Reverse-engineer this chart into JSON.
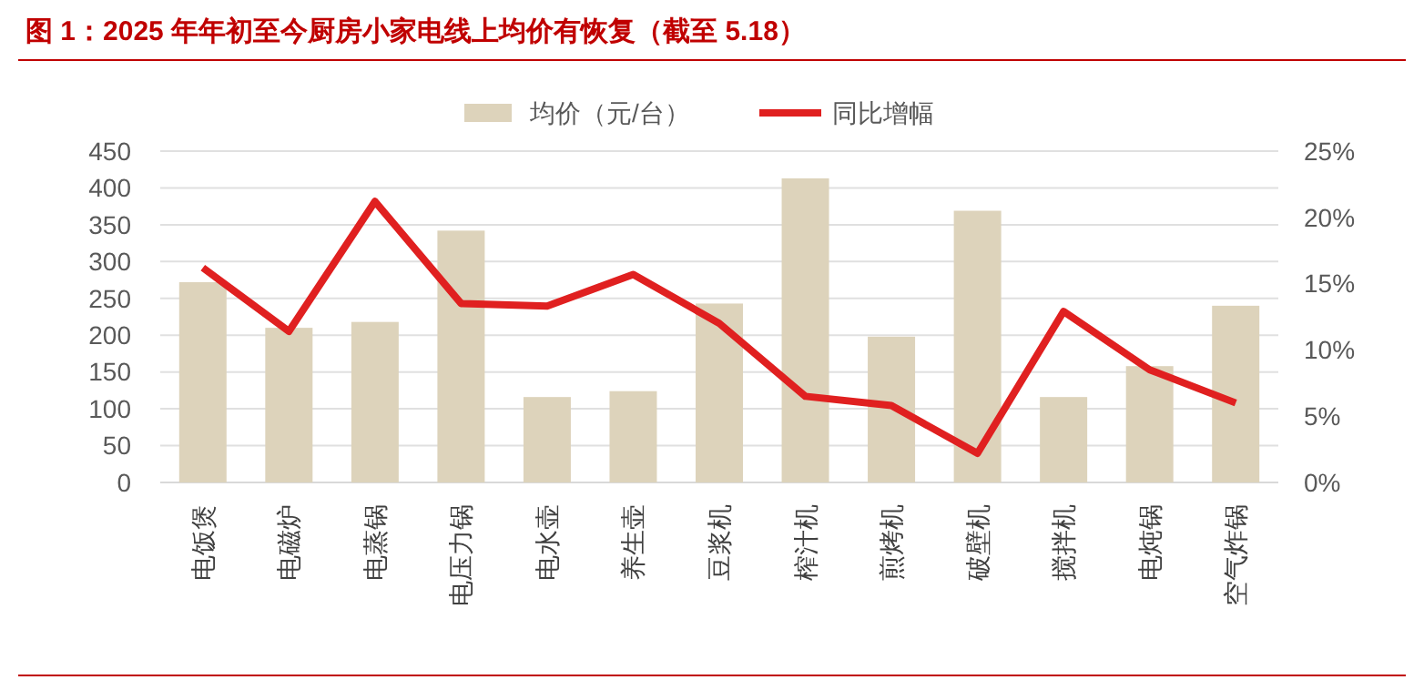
{
  "chart_data": {
    "type": "bar",
    "title": "图 1：2025 年年初至今厨房小家电线上均价有恢复（截至 5.18）",
    "categories": [
      "电饭煲",
      "电磁炉",
      "电蒸锅",
      "电压力锅",
      "电水壶",
      "养生壶",
      "豆浆机",
      "榨汁机",
      "煎烤机",
      "破壁机",
      "搅拌机",
      "电炖锅",
      "空气炸锅"
    ],
    "series": [
      {
        "name": "均价（元/台）",
        "color": "#ddd3bb",
        "values": [
          272,
          210,
          218,
          342,
          116,
          124,
          243,
          413,
          198,
          369,
          116,
          158,
          240
        ]
      },
      {
        "name": "同比增幅",
        "type": "line",
        "axis": "y2",
        "color": "#e02020",
        "values": [
          16.2,
          11.4,
          21.2,
          13.5,
          13.3,
          15.7,
          12.0,
          6.5,
          5.8,
          2.2,
          12.9,
          8.5,
          6.0
        ]
      }
    ],
    "ylim": [
      0,
      450
    ],
    "yticks": [
      0,
      50,
      100,
      150,
      200,
      250,
      300,
      350,
      400,
      450
    ],
    "y2lim": [
      0,
      25
    ],
    "y2ticks": [
      {
        "value": 0,
        "label": "0%"
      },
      {
        "value": 5,
        "label": "5%"
      },
      {
        "value": 10,
        "label": "10%"
      },
      {
        "value": 15,
        "label": "15%"
      },
      {
        "value": 20,
        "label": "20%"
      },
      {
        "value": 25,
        "label": "25%"
      }
    ],
    "grid": "y",
    "legend": "top",
    "marker": "none",
    "line_style": "solid"
  }
}
